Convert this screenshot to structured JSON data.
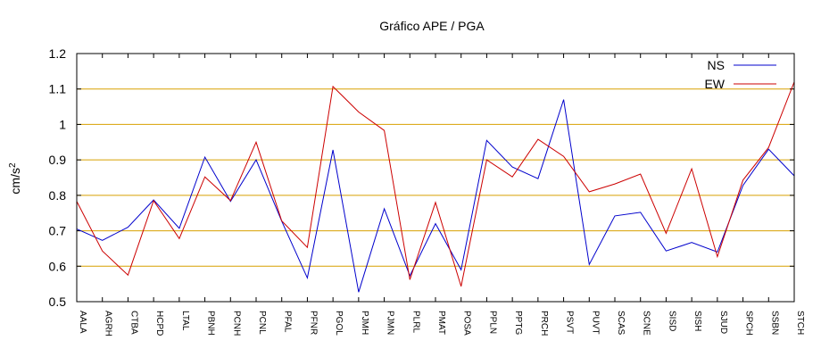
{
  "chart_data": {
    "type": "line",
    "title": "Gráfico  APE / PGA",
    "xlabel": "",
    "ylabel_base": "cm/s",
    "ylabel_exp": "2",
    "ylim": [
      0.5,
      1.2
    ],
    "yticks": [
      0.5,
      0.6,
      0.7,
      0.8,
      0.9,
      1,
      1.1,
      1.2
    ],
    "ytick_labels": [
      "0.5",
      "0.6",
      "0.7",
      "0.8",
      "0.9",
      "1",
      "1.1",
      "1.2"
    ],
    "grid": "horizontal",
    "legend_position": "top-right",
    "categories": [
      "AALA",
      "AGRH",
      "CTBA",
      "HCPD",
      "LTAL",
      "PBNH",
      "PCNH",
      "PCNL",
      "PFAL",
      "PFNR",
      "PGOL",
      "PJMH",
      "PJMN",
      "PLRL",
      "PMAT",
      "POSA",
      "PPLN",
      "PPTG",
      "PRCH",
      "PSVT",
      "PUVT",
      "SCAS",
      "SCNE",
      "SISD",
      "SISH",
      "SJUD",
      "SPCH",
      "SSBN",
      "STCH"
    ],
    "series": [
      {
        "name": "NS",
        "color": "#0000cc",
        "values": [
          0.705,
          0.673,
          0.71,
          0.787,
          0.707,
          0.908,
          0.783,
          0.9,
          0.727,
          0.567,
          0.928,
          0.527,
          0.762,
          0.573,
          0.72,
          0.59,
          0.955,
          0.88,
          0.847,
          1.07,
          0.605,
          0.742,
          0.752,
          0.643,
          0.667,
          0.64,
          0.828,
          0.93,
          0.855
        ]
      },
      {
        "name": "EW",
        "color": "#cc0000",
        "values": [
          0.783,
          0.643,
          0.575,
          0.785,
          0.678,
          0.852,
          0.785,
          0.95,
          0.728,
          0.653,
          1.107,
          1.035,
          0.983,
          0.562,
          0.78,
          0.543,
          0.9,
          0.852,
          0.958,
          0.91,
          0.81,
          0.832,
          0.86,
          0.693,
          0.875,
          0.627,
          0.843,
          0.935,
          1.12
        ]
      }
    ]
  },
  "colors": {
    "grid": "#d8a000",
    "axis": "#000000"
  }
}
